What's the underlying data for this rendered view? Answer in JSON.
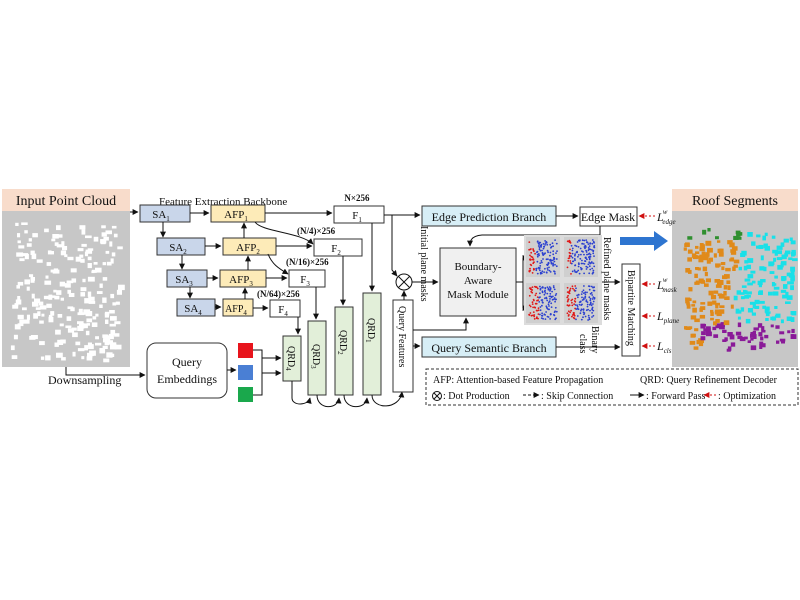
{
  "panels": {
    "input_title": "Input Point Cloud",
    "output_title": "Roof Segments",
    "downsampling": "Downsampling"
  },
  "backbone": {
    "title": "Feature Extraction Backbone",
    "sa": [
      {
        "main": "SA",
        "sub": "1"
      },
      {
        "main": "SA",
        "sub": "2"
      },
      {
        "main": "SA",
        "sub": "3"
      },
      {
        "main": "SA",
        "sub": "4"
      }
    ],
    "afp": [
      {
        "main": "AFP",
        "sub": "1"
      },
      {
        "main": "AFP",
        "sub": "2"
      },
      {
        "main": "AFP",
        "sub": "3"
      },
      {
        "main": "AFP",
        "sub": "4"
      }
    ],
    "f": [
      {
        "main": "F",
        "sub": "1"
      },
      {
        "main": "F",
        "sub": "2"
      },
      {
        "main": "F",
        "sub": "3"
      },
      {
        "main": "F",
        "sub": "4"
      }
    ],
    "dims": [
      "N×256",
      "(N/4)×256",
      "(N/16)×256",
      "(N/64)×256"
    ]
  },
  "qrd": [
    {
      "main": "QRD",
      "sub": "4"
    },
    {
      "main": "QRD",
      "sub": "3"
    },
    {
      "main": "QRD",
      "sub": "2"
    },
    {
      "main": "QRD",
      "sub": "1"
    }
  ],
  "query": {
    "embeddings_line1": "Query",
    "embeddings_line2": "Embeddings",
    "features": "Query Features",
    "swatch_colors": [
      "#e8141c",
      "#4a7fd4",
      "#1aa84c"
    ]
  },
  "branches": {
    "edge": "Edge Prediction Branch",
    "edge_mask": "Edge Mask",
    "semantic": "Query Semantic Branch",
    "initial_masks": "Initial plane masks",
    "refined_masks": "Refined plane masks",
    "binary_class_line1": "Binary",
    "binary_class_line2": "class",
    "bipartite": "Bipartite Matching"
  },
  "bam": {
    "line1": "Boundary-",
    "line2": "Aware",
    "line3": "Mask  Module"
  },
  "losses": [
    {
      "main": "L",
      "sup": "w",
      "sub": "edge"
    },
    {
      "main": "L",
      "sup": "w",
      "sub": "mask"
    },
    {
      "main": "L",
      "sup": "",
      "sub": "plane"
    },
    {
      "main": "L",
      "sup": "",
      "sub": "cls"
    }
  ],
  "legend": {
    "afp": "AFP: Attention-based Feature Propagation",
    "qrd": "QRD: Query Refinement Decoder",
    "dot": ": Dot Production",
    "skip": ": Skip Connection",
    "forward": ": Forward Pass",
    "opt": ": Optimization"
  },
  "colors": {
    "sa_fill": "#c9d6ea",
    "afp_fill": "#fdebb8",
    "qrd_fill": "#e2efd9",
    "branch_fill": "#d7eef6",
    "panel_bg": "#c7c7c7",
    "title_bg": "#f8dccb",
    "arrow_blue": "#2e75d0",
    "loss_red": "#d01010",
    "roof_green": "#2f8f2f",
    "roof_orange": "#e08a1a",
    "roof_cyan": "#19e0e8",
    "roof_purple": "#8a1a98"
  }
}
